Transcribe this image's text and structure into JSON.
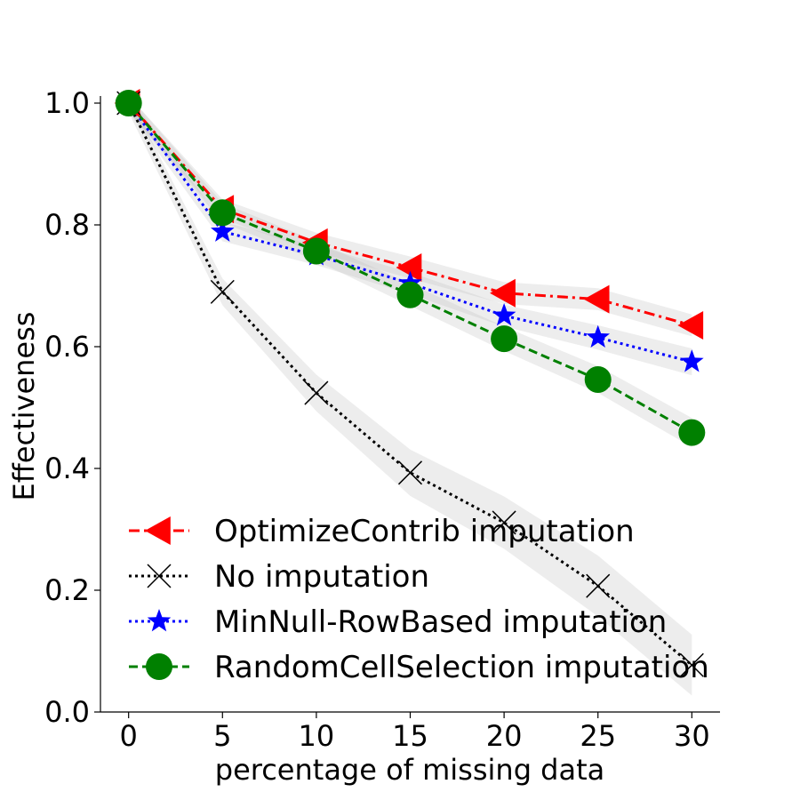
{
  "chart_data": {
    "type": "line",
    "title": "",
    "xlabel": "percentage of missing data",
    "ylabel": "Effectiveness",
    "xlim": [
      -1.5,
      31.5
    ],
    "ylim": [
      0.0,
      1.0
    ],
    "xticks": [
      0,
      5,
      10,
      15,
      20,
      25,
      30
    ],
    "yticks": [
      0.0,
      0.2,
      0.4,
      0.6,
      0.8,
      1.0
    ],
    "xtick_labels": [
      "0",
      "5",
      "10",
      "15",
      "20",
      "25",
      "30"
    ],
    "ytick_labels": [
      "0.0",
      "0.2",
      "0.4",
      "0.6",
      "0.8",
      "1.0"
    ],
    "grid": false,
    "legend_position": "lower-left",
    "x": [
      0,
      5,
      10,
      15,
      20,
      25,
      30
    ],
    "series": [
      {
        "name": "OptimizeContrib imputation",
        "values": [
          1.0,
          0.826,
          0.771,
          0.73,
          0.688,
          0.678,
          0.635
        ],
        "band": [
          0.014,
          0.016,
          0.016,
          0.018,
          0.018,
          0.018,
          0.018
        ],
        "color": "#ff0000",
        "linestyle": "dashdot",
        "marker": "triangle-left"
      },
      {
        "name": "No imputation",
        "values": [
          1.0,
          0.69,
          0.524,
          0.393,
          0.311,
          0.207,
          0.077
        ],
        "band": [
          0.015,
          0.022,
          0.03,
          0.038,
          0.043,
          0.05,
          0.05
        ],
        "color": "#000000",
        "linestyle": "dotted",
        "marker": "x"
      },
      {
        "name": "MinNull-RowBased imputation",
        "values": [
          1.0,
          0.789,
          0.75,
          0.704,
          0.651,
          0.615,
          0.575
        ],
        "band": [
          0.014,
          0.016,
          0.016,
          0.018,
          0.018,
          0.02,
          0.022
        ],
        "color": "#0000ff",
        "linestyle": "dotted",
        "marker": "star"
      },
      {
        "name": "RandomCellSelection imputation",
        "values": [
          1.0,
          0.82,
          0.757,
          0.685,
          0.613,
          0.546,
          0.459
        ],
        "band": [
          0.014,
          0.016,
          0.016,
          0.018,
          0.02,
          0.022,
          0.024
        ],
        "color": "#008000",
        "linestyle": "dashed",
        "marker": "circle"
      }
    ]
  }
}
